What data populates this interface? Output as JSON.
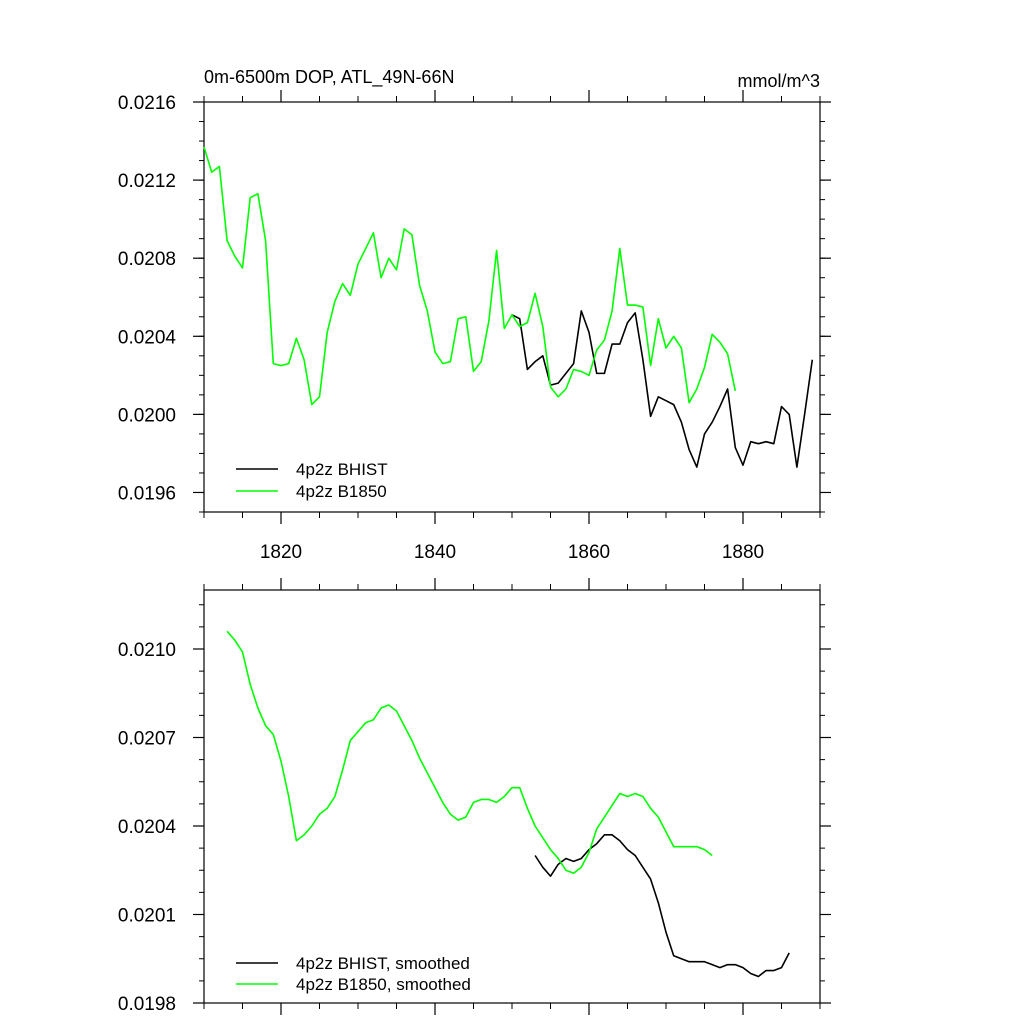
{
  "figure": {
    "title_left": "0m-6500m DOP, ATL_49N-66N",
    "title_right": "mmol/m^3"
  },
  "colors": {
    "bhist": "#000000",
    "b1850": "#00ff00",
    "axis": "#000000"
  },
  "chart_data": [
    {
      "type": "line",
      "title": "0m-6500m DOP, ATL_49N-66N",
      "units": "mmol/m^3",
      "xlim": [
        1810,
        1890
      ],
      "ylim": [
        0.0195,
        0.0216
      ],
      "xticks": [
        1820,
        1840,
        1860,
        1880
      ],
      "xtick_labels": [
        "1820",
        "1840",
        "1860",
        "1880"
      ],
      "yticks": [
        0.0196,
        0.02,
        0.0204,
        0.0208,
        0.0212,
        0.0216
      ],
      "ytick_labels": [
        "0.0196",
        "0.0200",
        "0.0204",
        "0.0208",
        "0.0212",
        "0.0216"
      ],
      "legend_position": "bottom-left",
      "series": [
        {
          "name": "4p2z BHIST",
          "color": "#000000",
          "x": [
            1850,
            1851,
            1852,
            1853,
            1854,
            1855,
            1856,
            1857,
            1858,
            1859,
            1860,
            1861,
            1862,
            1863,
            1864,
            1865,
            1866,
            1867,
            1868,
            1869,
            1870,
            1871,
            1872,
            1873,
            1874,
            1875,
            1876,
            1877,
            1878,
            1879,
            1880,
            1881,
            1882,
            1883,
            1884,
            1885,
            1886,
            1887,
            1888,
            1889
          ],
          "y": [
            0.02051,
            0.02049,
            0.02023,
            0.02027,
            0.0203,
            0.02015,
            0.02016,
            0.02021,
            0.02026,
            0.02053,
            0.02042,
            0.02021,
            0.02021,
            0.02036,
            0.02036,
            0.02047,
            0.02052,
            0.02028,
            0.01999,
            0.02009,
            0.02007,
            0.02005,
            0.01996,
            0.01982,
            0.01973,
            0.0199,
            0.01996,
            0.02004,
            0.02013,
            0.01983,
            0.01974,
            0.01986,
            0.01985,
            0.01986,
            0.01985,
            0.02004,
            0.02,
            0.01973,
            0.02,
            0.02028
          ]
        },
        {
          "name": "4p2z B1850",
          "color": "#00ff00",
          "x": [
            1810,
            1811,
            1812,
            1813,
            1814,
            1815,
            1816,
            1817,
            1818,
            1819,
            1820,
            1821,
            1822,
            1823,
            1824,
            1825,
            1826,
            1827,
            1828,
            1829,
            1830,
            1831,
            1832,
            1833,
            1834,
            1835,
            1836,
            1837,
            1838,
            1839,
            1840,
            1841,
            1842,
            1843,
            1844,
            1845,
            1846,
            1847,
            1848,
            1849,
            1850,
            1851,
            1852,
            1853,
            1854,
            1855,
            1856,
            1857,
            1858,
            1859,
            1860,
            1861,
            1862,
            1863,
            1864,
            1865,
            1866,
            1867,
            1868,
            1869,
            1870,
            1871,
            1872,
            1873,
            1874,
            1875,
            1876,
            1877,
            1878,
            1879
          ],
          "y": [
            0.02137,
            0.02124,
            0.02127,
            0.02089,
            0.02081,
            0.02075,
            0.02111,
            0.02113,
            0.02089,
            0.02026,
            0.02025,
            0.02026,
            0.02039,
            0.02028,
            0.02005,
            0.02009,
            0.02042,
            0.02058,
            0.02067,
            0.02061,
            0.02077,
            0.02085,
            0.02093,
            0.0207,
            0.0208,
            0.02074,
            0.02095,
            0.02092,
            0.02066,
            0.02053,
            0.02032,
            0.02026,
            0.02027,
            0.02049,
            0.0205,
            0.02022,
            0.02027,
            0.02048,
            0.02084,
            0.02044,
            0.02051,
            0.02045,
            0.02047,
            0.02062,
            0.02045,
            0.02014,
            0.02009,
            0.02013,
            0.02023,
            0.02022,
            0.0202,
            0.02033,
            0.02038,
            0.02053,
            0.02085,
            0.02056,
            0.02056,
            0.02055,
            0.02025,
            0.02049,
            0.02034,
            0.0204,
            0.02034,
            0.02006,
            0.02013,
            0.02024,
            0.02041,
            0.02037,
            0.02031,
            0.02012
          ]
        }
      ]
    },
    {
      "type": "line",
      "xlim": [
        1810,
        1890
      ],
      "ylim": [
        0.0198,
        0.0212
      ],
      "xticks": [
        1820,
        1840,
        1860,
        1880
      ],
      "yticks": [
        0.0198,
        0.0201,
        0.0204,
        0.0207,
        0.021
      ],
      "ytick_labels": [
        "0.0198",
        "0.0201",
        "0.0204",
        "0.0207",
        "0.0210"
      ],
      "legend_position": "bottom-left",
      "series": [
        {
          "name": "4p2z BHIST, smoothed",
          "color": "#000000",
          "x": [
            1853,
            1854,
            1855,
            1856,
            1857,
            1858,
            1859,
            1860,
            1861,
            1862,
            1863,
            1864,
            1865,
            1866,
            1867,
            1868,
            1869,
            1870,
            1871,
            1872,
            1873,
            1874,
            1875,
            1876,
            1877,
            1878,
            1879,
            1880,
            1881,
            1882,
            1883,
            1884,
            1885,
            1886
          ],
          "y": [
            0.0203,
            0.02026,
            0.02023,
            0.02027,
            0.02029,
            0.02028,
            0.02029,
            0.02032,
            0.02034,
            0.02037,
            0.02037,
            0.02035,
            0.02032,
            0.0203,
            0.02026,
            0.02022,
            0.02014,
            0.02004,
            0.01996,
            0.01995,
            0.01994,
            0.01994,
            0.01994,
            0.01993,
            0.01992,
            0.01993,
            0.01993,
            0.01992,
            0.0199,
            0.01989,
            0.01991,
            0.01991,
            0.01992,
            0.01997
          ]
        },
        {
          "name": "4p2z B1850, smoothed",
          "color": "#00ff00",
          "x": [
            1813,
            1814,
            1815,
            1816,
            1817,
            1818,
            1819,
            1820,
            1821,
            1822,
            1823,
            1824,
            1825,
            1826,
            1827,
            1828,
            1829,
            1830,
            1831,
            1832,
            1833,
            1834,
            1835,
            1836,
            1837,
            1838,
            1839,
            1840,
            1841,
            1842,
            1843,
            1844,
            1845,
            1846,
            1847,
            1848,
            1849,
            1850,
            1851,
            1852,
            1853,
            1854,
            1855,
            1856,
            1857,
            1858,
            1859,
            1860,
            1861,
            1862,
            1863,
            1864,
            1865,
            1866,
            1867,
            1868,
            1869,
            1870,
            1871,
            1872,
            1873,
            1874,
            1875,
            1876
          ],
          "y": [
            0.02106,
            0.02103,
            0.02099,
            0.02088,
            0.0208,
            0.02074,
            0.02071,
            0.02062,
            0.0205,
            0.02035,
            0.02037,
            0.0204,
            0.02044,
            0.02046,
            0.0205,
            0.02059,
            0.02069,
            0.02072,
            0.02075,
            0.02076,
            0.0208,
            0.02081,
            0.02079,
            0.02074,
            0.02069,
            0.02063,
            0.02058,
            0.02053,
            0.02048,
            0.02044,
            0.02042,
            0.02043,
            0.02048,
            0.02049,
            0.02049,
            0.02048,
            0.0205,
            0.02053,
            0.02053,
            0.02046,
            0.0204,
            0.02036,
            0.02032,
            0.02029,
            0.02025,
            0.02024,
            0.02026,
            0.02031,
            0.02039,
            0.02043,
            0.02047,
            0.02051,
            0.0205,
            0.02051,
            0.0205,
            0.02046,
            0.02043,
            0.02038,
            0.02033,
            0.02033,
            0.02033,
            0.02033,
            0.02032,
            0.0203
          ]
        }
      ]
    }
  ]
}
